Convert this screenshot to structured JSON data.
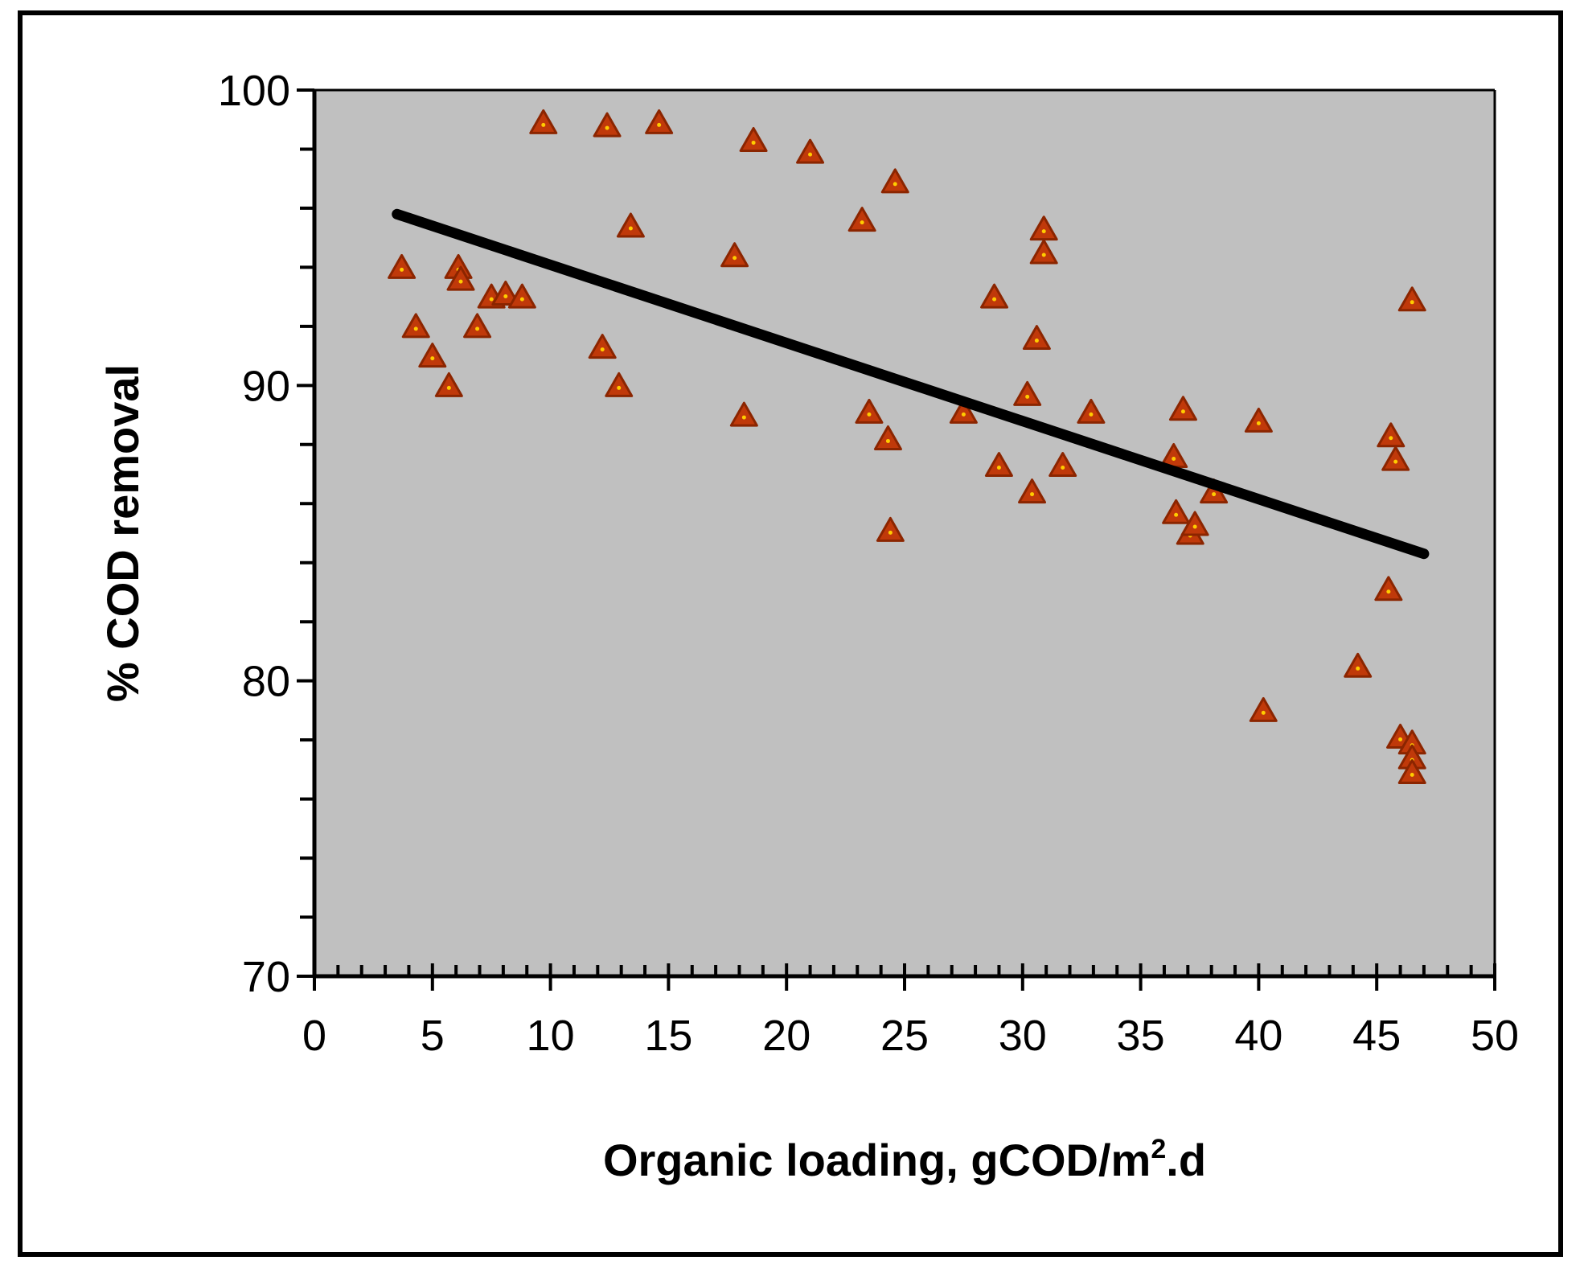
{
  "chart_data": {
    "type": "scatter",
    "title": "",
    "xlabel": "Organic loading, gCOD/m",
    "xlabel_superscript": "2",
    "xlabel_suffix": ".d",
    "ylabel": "% COD removal",
    "xlim": [
      0,
      50
    ],
    "ylim": [
      70,
      100
    ],
    "xticks": [
      0,
      5,
      10,
      15,
      20,
      25,
      30,
      35,
      40,
      45,
      50
    ],
    "yticks": [
      70,
      80,
      90,
      100
    ],
    "x_minor_step": 1,
    "y_minor_step": 2,
    "grid": false,
    "legend": "none",
    "colors": {
      "plot_background": "#c0c0c0",
      "marker_fill": "#c0390a",
      "marker_edge": "#8b2500",
      "trendline": "#000000"
    },
    "series": [
      {
        "name": "COD removal",
        "marker": "triangle",
        "points": [
          [
            3.7,
            94
          ],
          [
            4.3,
            92
          ],
          [
            5.0,
            91
          ],
          [
            5.7,
            90
          ],
          [
            6.1,
            94
          ],
          [
            6.2,
            93.6
          ],
          [
            6.9,
            92
          ],
          [
            7.5,
            93
          ],
          [
            8.1,
            93.1
          ],
          [
            8.8,
            93
          ],
          [
            9.7,
            98.9
          ],
          [
            12.2,
            91.3
          ],
          [
            12.4,
            98.8
          ],
          [
            12.9,
            90
          ],
          [
            13.4,
            95.4
          ],
          [
            14.6,
            98.9
          ],
          [
            17.8,
            94.4
          ],
          [
            18.2,
            89
          ],
          [
            18.6,
            98.3
          ],
          [
            21.0,
            97.9
          ],
          [
            23.2,
            95.6
          ],
          [
            23.5,
            89.1
          ],
          [
            24.3,
            88.2
          ],
          [
            24.4,
            85.1
          ],
          [
            24.6,
            96.9
          ],
          [
            27.5,
            89.1
          ],
          [
            28.8,
            93
          ],
          [
            29.0,
            87.3
          ],
          [
            30.2,
            89.7
          ],
          [
            30.4,
            86.4
          ],
          [
            30.6,
            91.6
          ],
          [
            30.9,
            95.3
          ],
          [
            30.9,
            94.5
          ],
          [
            31.7,
            87.3
          ],
          [
            32.9,
            89.1
          ],
          [
            36.4,
            87.6
          ],
          [
            36.5,
            85.7
          ],
          [
            36.8,
            89.2
          ],
          [
            37.1,
            85
          ],
          [
            37.3,
            85.3
          ],
          [
            38.1,
            86.4
          ],
          [
            40.0,
            88.8
          ],
          [
            40.2,
            79
          ],
          [
            44.2,
            80.5
          ],
          [
            45.5,
            83.1
          ],
          [
            45.6,
            88.3
          ],
          [
            45.8,
            87.5
          ],
          [
            46.0,
            78.1
          ],
          [
            46.5,
            92.9
          ],
          [
            46.5,
            77.9
          ],
          [
            46.5,
            77.4
          ],
          [
            46.5,
            76.9
          ]
        ]
      }
    ],
    "trendline": {
      "x": [
        3.5,
        47.0
      ],
      "y": [
        95.8,
        84.3
      ]
    }
  }
}
